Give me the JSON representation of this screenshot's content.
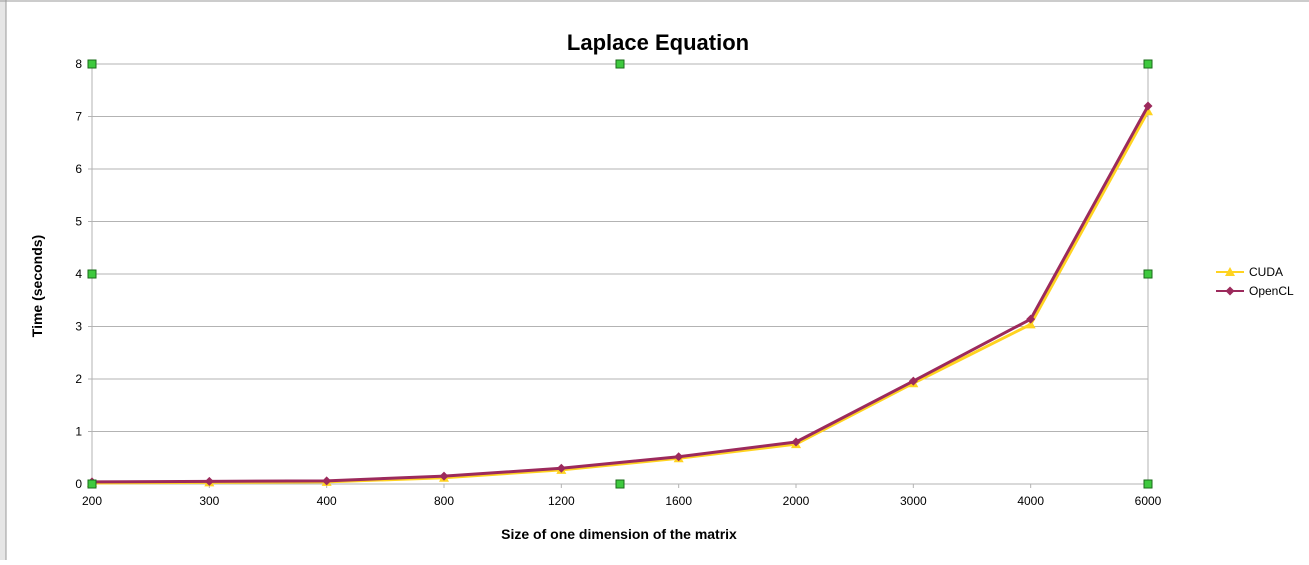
{
  "chart_data": {
    "type": "line",
    "title": "Laplace Equation",
    "xlabel": "Size of one dimension of the matrix",
    "ylabel": "Time (seconds)",
    "categories": [
      "200",
      "300",
      "400",
      "800",
      "1200",
      "1600",
      "2000",
      "3000",
      "4000",
      "6000"
    ],
    "ylim": [
      0,
      8
    ],
    "yticks": [
      "0",
      "1",
      "2",
      "3",
      "4",
      "5",
      "6",
      "7",
      "8"
    ],
    "grid": true,
    "legend_position": "right",
    "series": [
      {
        "name": "CUDA",
        "color": "#ffd320",
        "marker": "triangle",
        "values": [
          0.02,
          0.03,
          0.04,
          0.12,
          0.27,
          0.49,
          0.76,
          1.92,
          3.04,
          7.1
        ]
      },
      {
        "name": "OpenCL",
        "color": "#9c2a5c",
        "marker": "diamond",
        "values": [
          0.04,
          0.05,
          0.06,
          0.15,
          0.3,
          0.52,
          0.8,
          1.96,
          3.14,
          7.2
        ]
      }
    ]
  }
}
